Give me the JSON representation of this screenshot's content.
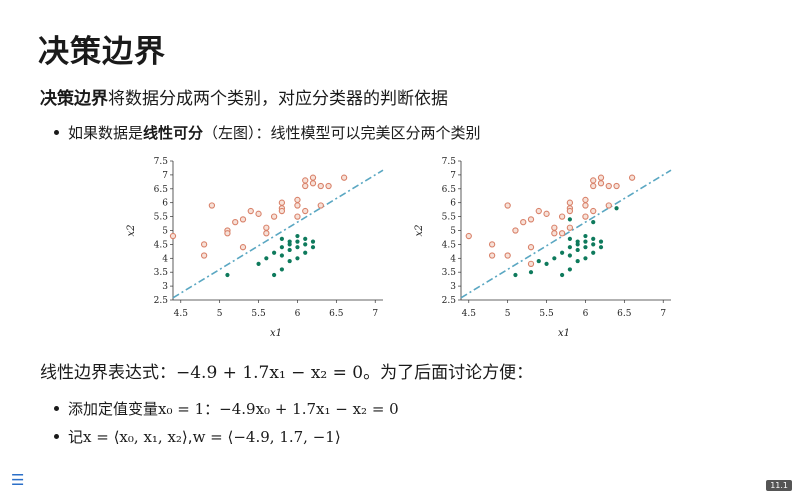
{
  "slide": {
    "title": "决策边界",
    "intro_bold": "决策边界",
    "intro_rest": "将数据分成两个类别，对应分类器的判断依据",
    "bullet1_pre": "如果数据是",
    "bullet1_bold": "线性可分",
    "bullet1_post": "（左图）：线性模型可以完美区分两个类别",
    "formula_pre": "线性边界表达式：",
    "formula_math": "−4.9 + 1.7x₁ − x₂ = 0",
    "formula_post": "。为了后面讨论方便：",
    "bullet3_pre": "添加定值变量 ",
    "bullet3_math1": "x₀ = 1",
    "bullet3_sep": "：",
    "bullet3_math2": "−4.9x₀ + 1.7x₁ − x₂ = 0",
    "bullet4_pre": "记 ",
    "bullet4_math1": "x = ⟨x₀, x₁, x₂⟩",
    "bullet4_sep": ", ",
    "bullet4_math2": "w = ⟨−4.9, 1.7, −1⟩",
    "page_number": "11.1"
  },
  "colors": {
    "orange": "#d9826a",
    "green": "#0e7a5c",
    "line": "#5aa7c2",
    "accent": "#2b6fc8"
  },
  "chart_data": [
    {
      "type": "scatter",
      "xlabel": "x1",
      "ylabel": "x2",
      "xlim": [
        4.4,
        7.1
      ],
      "ylim": [
        2.5,
        7.5
      ],
      "xticks": [
        "4.5",
        "5",
        "5.5",
        "6",
        "6.5",
        "7"
      ],
      "yticks": [
        "2.5",
        "3",
        "3.5",
        "4",
        "4.5",
        "5",
        "5.5",
        "6",
        "6.5",
        "7",
        "7.5"
      ],
      "boundary": {
        "intercept": -4.9,
        "slope": 1.7
      },
      "series": [
        {
          "marker": "open-circle",
          "points": [
            [
              4.4,
              4.8
            ],
            [
              4.8,
              4.5
            ],
            [
              4.8,
              4.1
            ],
            [
              4.9,
              5.9
            ],
            [
              5.1,
              5.0
            ],
            [
              5.1,
              4.9
            ],
            [
              5.2,
              5.3
            ],
            [
              5.3,
              5.4
            ],
            [
              5.3,
              4.4
            ],
            [
              5.4,
              5.7
            ],
            [
              5.5,
              5.6
            ],
            [
              5.6,
              5.1
            ],
            [
              5.7,
              5.5
            ],
            [
              5.8,
              5.8
            ],
            [
              5.8,
              6.0
            ],
            [
              5.8,
              5.7
            ],
            [
              6.0,
              6.1
            ],
            [
              6.0,
              5.9
            ],
            [
              6.1,
              6.6
            ],
            [
              6.1,
              6.8
            ],
            [
              6.2,
              6.9
            ],
            [
              6.2,
              6.7
            ],
            [
              6.3,
              6.6
            ],
            [
              6.4,
              6.6
            ],
            [
              6.1,
              5.7
            ],
            [
              6.3,
              5.9
            ],
            [
              6.0,
              5.5
            ],
            [
              6.6,
              6.9
            ],
            [
              5.6,
              4.9
            ]
          ]
        },
        {
          "marker": "filled-dot",
          "points": [
            [
              5.1,
              3.4
            ],
            [
              5.5,
              3.8
            ],
            [
              5.6,
              4.0
            ],
            [
              5.7,
              4.2
            ],
            [
              5.7,
              3.4
            ],
            [
              5.8,
              4.1
            ],
            [
              5.9,
              4.3
            ],
            [
              5.9,
              4.5
            ],
            [
              5.9,
              4.6
            ],
            [
              6.0,
              4.4
            ],
            [
              6.0,
              4.6
            ],
            [
              6.0,
              4.8
            ],
            [
              6.0,
              4.0
            ],
            [
              6.1,
              4.5
            ],
            [
              6.1,
              4.7
            ],
            [
              6.1,
              4.2
            ],
            [
              6.2,
              4.4
            ],
            [
              6.2,
              4.6
            ],
            [
              5.8,
              4.7
            ],
            [
              5.8,
              4.4
            ],
            [
              5.9,
              3.9
            ],
            [
              5.8,
              3.6
            ]
          ]
        }
      ]
    },
    {
      "type": "scatter",
      "xlabel": "x1",
      "ylabel": "x2",
      "xlim": [
        4.4,
        7.1
      ],
      "ylim": [
        2.5,
        7.5
      ],
      "xticks": [
        "4.5",
        "5",
        "5.5",
        "6",
        "6.5",
        "7"
      ],
      "yticks": [
        "2.5",
        "3",
        "3.5",
        "4",
        "4.5",
        "5",
        "5.5",
        "6",
        "6.5",
        "7",
        "7.5"
      ],
      "boundary": {
        "intercept": -4.9,
        "slope": 1.7
      },
      "series": [
        {
          "marker": "open-circle",
          "points": [
            [
              4.5,
              4.8
            ],
            [
              4.8,
              4.1
            ],
            [
              4.8,
              4.5
            ],
            [
              5.0,
              4.1
            ],
            [
              5.0,
              5.9
            ],
            [
              5.1,
              5.0
            ],
            [
              5.2,
              5.3
            ],
            [
              5.3,
              5.4
            ],
            [
              5.3,
              4.4
            ],
            [
              5.4,
              5.7
            ],
            [
              5.5,
              5.6
            ],
            [
              5.6,
              5.1
            ],
            [
              5.7,
              5.5
            ],
            [
              5.8,
              5.8
            ],
            [
              5.8,
              6.0
            ],
            [
              5.8,
              5.7
            ],
            [
              6.0,
              6.1
            ],
            [
              6.0,
              5.9
            ],
            [
              6.1,
              6.6
            ],
            [
              6.1,
              6.8
            ],
            [
              6.2,
              6.9
            ],
            [
              6.2,
              6.7
            ],
            [
              6.3,
              6.6
            ],
            [
              6.4,
              6.6
            ],
            [
              6.1,
              5.7
            ],
            [
              6.3,
              5.9
            ],
            [
              6.0,
              5.5
            ],
            [
              6.6,
              6.9
            ],
            [
              5.6,
              4.9
            ],
            [
              5.3,
              3.8
            ],
            [
              5.7,
              4.9
            ],
            [
              5.8,
              5.1
            ]
          ]
        },
        {
          "marker": "filled-dot",
          "points": [
            [
              5.1,
              3.4
            ],
            [
              5.3,
              3.5
            ],
            [
              5.4,
              3.9
            ],
            [
              5.5,
              3.8
            ],
            [
              5.6,
              4.0
            ],
            [
              5.7,
              4.2
            ],
            [
              5.7,
              3.4
            ],
            [
              5.8,
              4.1
            ],
            [
              5.9,
              4.3
            ],
            [
              5.9,
              4.5
            ],
            [
              5.9,
              4.6
            ],
            [
              6.0,
              4.4
            ],
            [
              6.0,
              4.6
            ],
            [
              6.0,
              4.8
            ],
            [
              6.0,
              4.0
            ],
            [
              6.1,
              4.5
            ],
            [
              6.1,
              4.7
            ],
            [
              6.1,
              4.2
            ],
            [
              6.2,
              4.4
            ],
            [
              6.2,
              4.6
            ],
            [
              5.8,
              4.7
            ],
            [
              5.8,
              4.4
            ],
            [
              5.9,
              3.9
            ],
            [
              5.8,
              3.6
            ],
            [
              6.4,
              5.8
            ],
            [
              6.1,
              5.3
            ],
            [
              5.8,
              5.4
            ]
          ]
        }
      ]
    }
  ]
}
